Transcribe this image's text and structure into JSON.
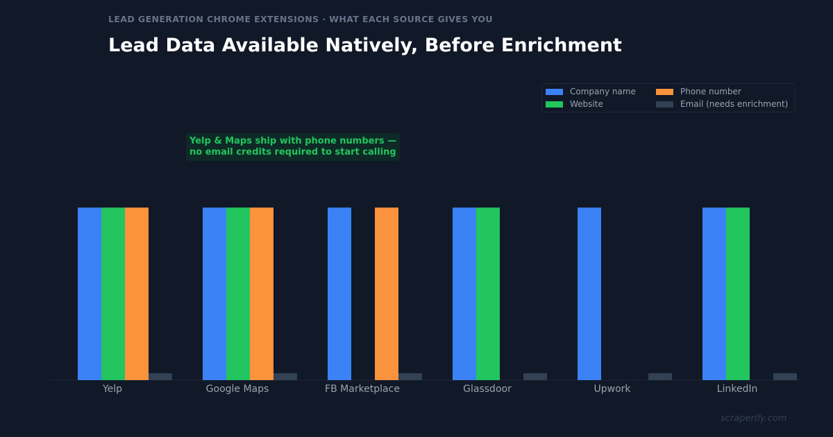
{
  "header": {
    "eyebrow": "LEAD GENERATION CHROME EXTENSIONS  ·  WHAT EACH SOURCE GIVES YOU",
    "title": "Lead Data Available Natively, Before Enrichment"
  },
  "annotation": "Yelp & Maps ship with phone numbers —\nno email credits required to start calling",
  "watermark": "scraperify.com",
  "chart_data": {
    "type": "bar",
    "title": "Lead Data Available Natively, Before Enrichment",
    "categories": [
      "Yelp",
      "Google Maps",
      "FB Marketplace",
      "Glassdoor",
      "Upwork",
      "LinkedIn"
    ],
    "series": [
      {
        "name": "Company name",
        "color": "#3b82f6",
        "values": [
          1,
          1,
          1,
          1,
          1,
          1
        ]
      },
      {
        "name": "Website",
        "color": "#22c55e",
        "values": [
          1,
          1,
          0,
          1,
          0,
          1
        ]
      },
      {
        "name": "Phone number",
        "color": "#fb923c",
        "values": [
          1,
          1,
          1,
          0,
          0,
          0
        ]
      },
      {
        "name": "Email (needs enrichment)",
        "color": "#334155",
        "values": [
          0.04,
          0.04,
          0.04,
          0.04,
          0.04,
          0.04
        ]
      }
    ],
    "ylim": [
      0,
      1.6
    ],
    "grid": false,
    "legend_position": "top-right"
  }
}
